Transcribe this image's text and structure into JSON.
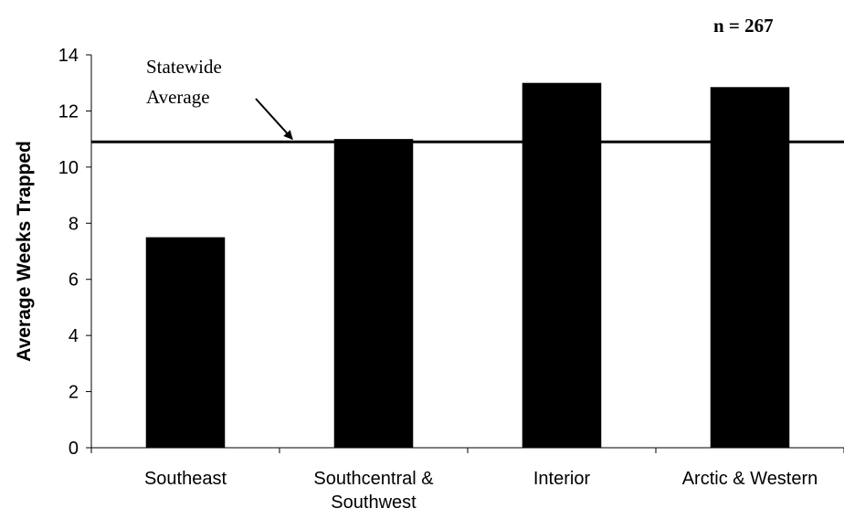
{
  "chart_data": {
    "type": "bar",
    "categories": [
      [
        "Southeast"
      ],
      [
        "Southcentral &",
        "Southwest"
      ],
      [
        "Interior"
      ],
      [
        "Arctic & Western"
      ]
    ],
    "values": [
      7.5,
      11.0,
      13.0,
      12.85
    ],
    "ylabel": "Average Weeks Trapped",
    "ylim": [
      0,
      14
    ],
    "yticks": [
      0,
      2,
      4,
      6,
      8,
      10,
      12,
      14
    ],
    "grid": false,
    "bar_color": "#000000",
    "reference_line": {
      "value": 10.9,
      "label_line1": "Statewide",
      "label_line2": "Average"
    },
    "annotation": "n = 267"
  }
}
